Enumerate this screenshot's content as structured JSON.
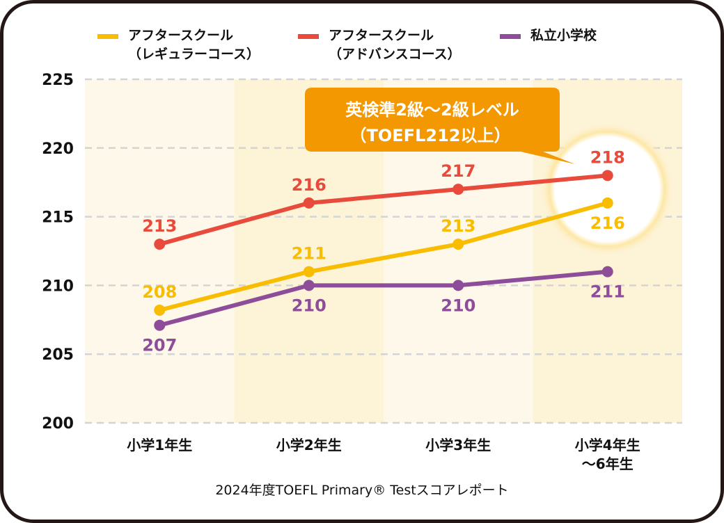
{
  "chart_data": {
    "type": "line",
    "categories": [
      "小学1年生",
      "小学2年生",
      "小学3年生",
      [
        "小学4年生",
        "～6年生"
      ]
    ],
    "ylim": [
      200,
      225
    ],
    "yticks": [
      200,
      205,
      210,
      215,
      220,
      225
    ],
    "grid": true,
    "legend_position": "top",
    "series": [
      {
        "name": [
          "アフタースクール",
          "（レギュラーコース）"
        ],
        "color": "#f8bc00",
        "values": [
          208.2,
          211,
          213,
          216
        ],
        "labels": [
          "208",
          "211",
          "213",
          "216"
        ],
        "label_pos": [
          "above",
          "above",
          "above",
          "below"
        ]
      },
      {
        "name": [
          "アフタースクール",
          "（アドバンスコース）"
        ],
        "color": "#e84a3c",
        "values": [
          213,
          216,
          217,
          218
        ],
        "labels": [
          "213",
          "216",
          "217",
          "218"
        ],
        "label_pos": [
          "above",
          "above",
          "above",
          "above"
        ]
      },
      {
        "name": [
          "私立小学校"
        ],
        "color": "#8e4d99",
        "values": [
          207.1,
          210,
          210,
          211
        ],
        "labels": [
          "207",
          "210",
          "210",
          "211"
        ],
        "label_pos": [
          "below",
          "below",
          "below",
          "below"
        ]
      }
    ],
    "annotation": {
      "lines": [
        "英検準2級～2級レベル",
        "（TOEFL212以上）"
      ],
      "color": "#f39800"
    },
    "caption": "2024年度TOEFL Primary® Testスコアレポート"
  }
}
